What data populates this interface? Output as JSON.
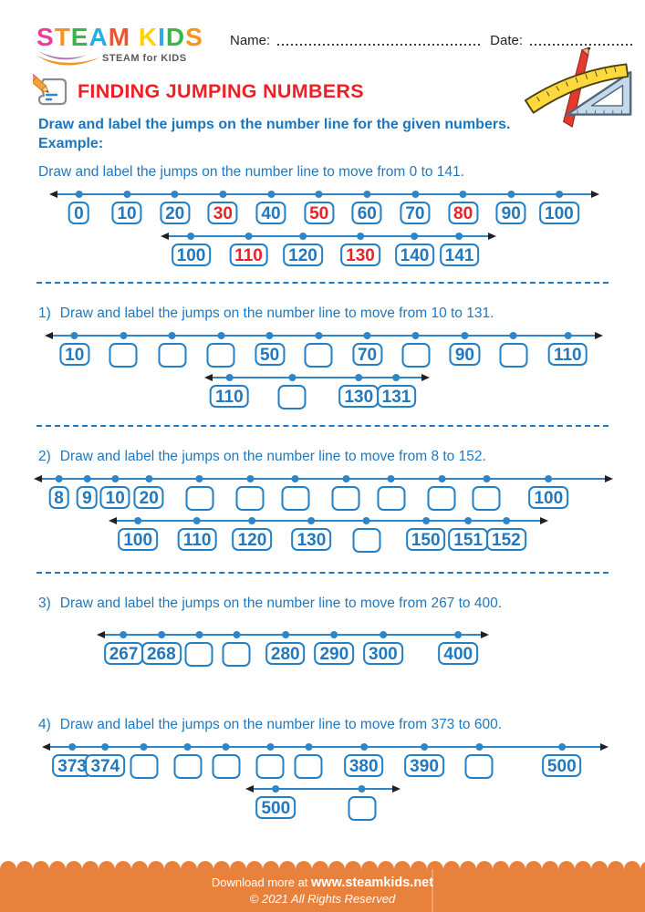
{
  "header": {
    "logo": {
      "letters": [
        {
          "ch": "S",
          "color": "#ee3d96"
        },
        {
          "ch": "T",
          "color": "#f7941d"
        },
        {
          "ch": "E",
          "color": "#3bb54a"
        },
        {
          "ch": "A",
          "color": "#2aabe2"
        },
        {
          "ch": "M",
          "color": "#f0542c"
        },
        {
          "ch": " ",
          "color": ""
        },
        {
          "ch": "K",
          "color": "#ffd200"
        },
        {
          "ch": "I",
          "color": "#2aabe2"
        },
        {
          "ch": "D",
          "color": "#3bb54a"
        },
        {
          "ch": "S",
          "color": "#f7941d"
        }
      ],
      "tagline": "STEAM for KIDS"
    },
    "name_label": "Name:",
    "date_label": "Date:"
  },
  "title": {
    "text": "FINDING JUMPING NUMBERS"
  },
  "intro": {
    "line1": "Draw and label the jumps on the number line for the given numbers.",
    "line2": "Example:"
  },
  "example": {
    "prompt": "Draw and label the jumps on the number line to move from 0 to 141.",
    "lines": [
      {
        "boxes": [
          {
            "v": "0"
          },
          {
            "v": "10"
          },
          {
            "v": "20"
          },
          {
            "v": "30",
            "red": true
          },
          {
            "v": "40"
          },
          {
            "v": "50",
            "red": true
          },
          {
            "v": "60"
          },
          {
            "v": "70"
          },
          {
            "v": "80",
            "red": true
          },
          {
            "v": "90"
          },
          {
            "v": "100"
          }
        ]
      },
      {
        "boxes": [
          {
            "v": "100"
          },
          {
            "v": "110",
            "red": true
          },
          {
            "v": "120"
          },
          {
            "v": "130",
            "red": true
          },
          {
            "v": "140"
          },
          {
            "v": "141"
          }
        ]
      }
    ]
  },
  "questions": [
    {
      "num": "1)",
      "prompt": "Draw and label the jumps on the number line to move from 10 to 131.",
      "lines": [
        {
          "boxes": [
            {
              "v": "10"
            },
            {
              "v": ""
            },
            {
              "v": ""
            },
            {
              "v": ""
            },
            {
              "v": "50"
            },
            {
              "v": ""
            },
            {
              "v": "70"
            },
            {
              "v": ""
            },
            {
              "v": "90"
            },
            {
              "v": ""
            },
            {
              "v": "110"
            }
          ]
        },
        {
          "boxes": [
            {
              "v": "110"
            },
            {
              "v": ""
            },
            {
              "v": "130"
            },
            {
              "v": "131"
            }
          ]
        }
      ]
    },
    {
      "num": "2)",
      "prompt": "Draw and label the jumps on the number line to move from 8 to 152.",
      "lines": [
        {
          "boxes": [
            {
              "v": "8"
            },
            {
              "v": "9"
            },
            {
              "v": "10"
            },
            {
              "v": "20"
            },
            {
              "v": ""
            },
            {
              "v": ""
            },
            {
              "v": ""
            },
            {
              "v": ""
            },
            {
              "v": ""
            },
            {
              "v": ""
            },
            {
              "v": ""
            },
            {
              "v": "100"
            }
          ]
        },
        {
          "boxes": [
            {
              "v": "100"
            },
            {
              "v": "110"
            },
            {
              "v": "120"
            },
            {
              "v": "130"
            },
            {
              "v": ""
            },
            {
              "v": "150"
            },
            {
              "v": "151"
            },
            {
              "v": "152"
            }
          ]
        }
      ]
    },
    {
      "num": "3)",
      "prompt": "Draw and label the jumps on the number line to move from 267 to 400.",
      "lines": [
        {
          "boxes": [
            {
              "v": "267"
            },
            {
              "v": "268"
            },
            {
              "v": ""
            },
            {
              "v": ""
            },
            {
              "v": "280"
            },
            {
              "v": "290"
            },
            {
              "v": "300"
            },
            {
              "v": "400"
            }
          ]
        }
      ]
    },
    {
      "num": "4)",
      "prompt": "Draw and label the jumps on the number line to move from 373 to 600.",
      "lines": [
        {
          "boxes": [
            {
              "v": "373"
            },
            {
              "v": "374"
            },
            {
              "v": ""
            },
            {
              "v": ""
            },
            {
              "v": ""
            },
            {
              "v": ""
            },
            {
              "v": ""
            },
            {
              "v": "380"
            },
            {
              "v": "390"
            },
            {
              "v": ""
            },
            {
              "v": "500"
            }
          ]
        },
        {
          "boxes": [
            {
              "v": "500"
            },
            {
              "v": ""
            }
          ]
        }
      ]
    }
  ],
  "footer": {
    "download_prefix": "Download more at ",
    "site": "www.steamkids.net",
    "copyright": "© 2021 All Rights Reserved"
  },
  "colors": {
    "accent_blue": "#1b75bc",
    "title_red": "#ec2027",
    "number_red": "#e82328",
    "box_border_blue": "#2380c4",
    "footer_orange": "#e8813c"
  }
}
